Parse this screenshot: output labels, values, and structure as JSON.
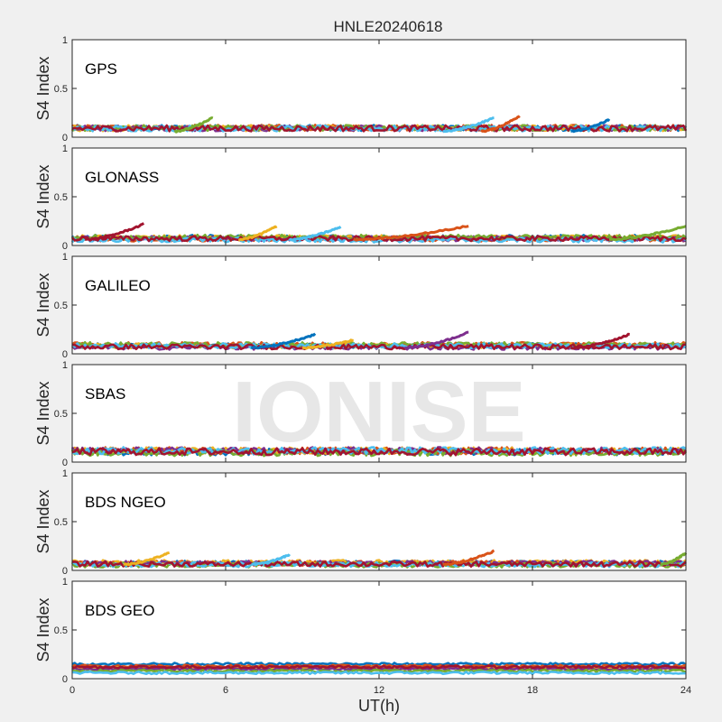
{
  "title": "HNLE20240618",
  "watermark": "IONISE",
  "xlabel": "UT(h)",
  "ylabel": "S4 Index",
  "x_ticks": [
    "0",
    "6",
    "12",
    "18",
    "24"
  ],
  "y_ticks": [
    "0",
    "0.5",
    "1"
  ],
  "colors": [
    "#0072bd",
    "#d95319",
    "#edb120",
    "#7e2f8e",
    "#77ac30",
    "#4dbeee",
    "#a2142f"
  ],
  "chart_data": [
    {
      "type": "scatter",
      "panel": "GPS",
      "xlabel": "UT(h)",
      "ylabel": "S4 Index",
      "xlim": [
        0,
        24
      ],
      "ylim": [
        0,
        1
      ],
      "series_count": 7,
      "baseline_s4": 0.09,
      "spread": 0.03,
      "arcs": [
        {
          "start": 14.5,
          "end": 16.5,
          "peak": 0.2
        },
        {
          "start": 16.0,
          "end": 17.5,
          "peak": 0.22
        },
        {
          "start": 4.0,
          "end": 5.5,
          "peak": 0.2
        },
        {
          "start": 19.5,
          "end": 21.0,
          "peak": 0.18
        }
      ]
    },
    {
      "type": "scatter",
      "panel": "GLONASS",
      "xlabel": "UT(h)",
      "ylabel": "S4 Index",
      "xlim": [
        0,
        24
      ],
      "ylim": [
        0,
        1
      ],
      "series_count": 7,
      "baseline_s4": 0.07,
      "spread": 0.025,
      "arcs": [
        {
          "start": 0.5,
          "end": 2.8,
          "peak": 0.22
        },
        {
          "start": 6.5,
          "end": 8.0,
          "peak": 0.2
        },
        {
          "start": 8.5,
          "end": 10.5,
          "peak": 0.19
        },
        {
          "start": 11.0,
          "end": 15.5,
          "peak": 0.2
        },
        {
          "start": 21.0,
          "end": 24.0,
          "peak": 0.2
        }
      ]
    },
    {
      "type": "scatter",
      "panel": "GALILEO",
      "xlabel": "UT(h)",
      "ylabel": "S4 Index",
      "xlim": [
        0,
        24
      ],
      "ylim": [
        0,
        1
      ],
      "series_count": 7,
      "baseline_s4": 0.08,
      "spread": 0.025,
      "arcs": [
        {
          "start": 7.0,
          "end": 9.5,
          "peak": 0.2
        },
        {
          "start": 13.0,
          "end": 15.5,
          "peak": 0.22
        },
        {
          "start": 19.5,
          "end": 21.8,
          "peak": 0.2
        },
        {
          "start": 9.0,
          "end": 11.0,
          "peak": 0.14
        }
      ]
    },
    {
      "type": "scatter",
      "panel": "SBAS",
      "xlabel": "UT(h)",
      "ylabel": "S4 Index",
      "xlim": [
        0,
        24
      ],
      "ylim": [
        0,
        1
      ],
      "series_count": 7,
      "baseline_s4": 0.11,
      "spread": 0.035,
      "arcs": []
    },
    {
      "type": "scatter",
      "panel": "BDS NGEO",
      "xlabel": "UT(h)",
      "ylabel": "S4 Index",
      "xlim": [
        0,
        24
      ],
      "ylim": [
        0,
        1
      ],
      "series_count": 7,
      "baseline_s4": 0.07,
      "spread": 0.025,
      "arcs": [
        {
          "start": 2.0,
          "end": 3.8,
          "peak": 0.18
        },
        {
          "start": 7.0,
          "end": 8.5,
          "peak": 0.16
        },
        {
          "start": 14.5,
          "end": 16.5,
          "peak": 0.2
        },
        {
          "start": 23.0,
          "end": 24.0,
          "peak": 0.18
        }
      ]
    },
    {
      "type": "scatter",
      "panel": "BDS GEO",
      "xlabel": "UT(h)",
      "ylabel": "S4 Index",
      "xlim": [
        0,
        24
      ],
      "ylim": [
        0,
        1
      ],
      "series_count": 7,
      "levels": [
        0.15,
        0.13,
        0.11,
        0.1,
        0.08,
        0.06,
        0.12
      ],
      "spread": 0.012,
      "arcs": []
    }
  ]
}
